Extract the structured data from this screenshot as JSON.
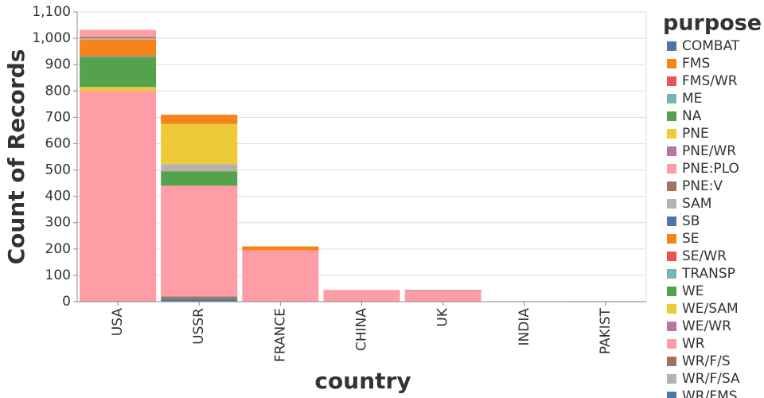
{
  "chart_data": {
    "type": "stacked_bar",
    "x_label": "country",
    "y_label": "Count of Records",
    "legend_title": "purpose",
    "categories": [
      "USA",
      "USSR",
      "FRANCE",
      "CHINA",
      "UK",
      "INDIA",
      "PAKIST"
    ],
    "ylim": [
      0,
      1100
    ],
    "yticks": [
      0,
      100,
      200,
      300,
      400,
      500,
      600,
      700,
      800,
      900,
      {
        "value": 1000,
        "label": "1,000"
      },
      {
        "value": 1100,
        "label": "1,100"
      }
    ],
    "grid": true,
    "series": [
      {
        "name": "COMBAT",
        "color": "#4c78a8",
        "values": [
          0,
          0,
          0,
          0,
          0,
          0,
          0
        ]
      },
      {
        "name": "FMS",
        "color": "#f58518",
        "values": [
          0,
          35,
          0,
          0,
          0,
          0,
          0
        ]
      },
      {
        "name": "FMS/WR",
        "color": "#e45756",
        "values": [
          0,
          0,
          0,
          0,
          0,
          0,
          0
        ]
      },
      {
        "name": "ME",
        "color": "#72b7b2",
        "values": [
          0,
          0,
          0,
          0,
          0,
          0,
          0
        ]
      },
      {
        "name": "NA",
        "color": "#54a24b",
        "values": [
          0,
          0,
          0,
          0,
          0,
          0,
          0
        ]
      },
      {
        "name": "PNE",
        "color": "#eeca3b",
        "values": [
          0,
          153,
          0,
          0,
          0,
          0,
          0
        ]
      },
      {
        "name": "PNE/WR",
        "color": "#b279a2",
        "values": [
          0,
          0,
          0,
          0,
          0,
          0,
          0
        ]
      },
      {
        "name": "PNE:PLO",
        "color": "#ff9da6",
        "values": [
          27,
          0,
          0,
          0,
          0,
          0,
          0
        ]
      },
      {
        "name": "PNE:V",
        "color": "#9d755d",
        "values": [
          5,
          0,
          0,
          0,
          0,
          0,
          0
        ]
      },
      {
        "name": "SAM",
        "color": "#bab0ac",
        "values": [
          5,
          27,
          0,
          0,
          0,
          0,
          0
        ]
      },
      {
        "name": "SB",
        "color": "#4c78a8",
        "values": [
          0,
          0,
          0,
          0,
          0,
          0,
          0
        ]
      },
      {
        "name": "SE",
        "color": "#f58518",
        "values": [
          60,
          0,
          15,
          0,
          0,
          0,
          0
        ]
      },
      {
        "name": "SE/WR",
        "color": "#e45756",
        "values": [
          3,
          0,
          0,
          0,
          0,
          0,
          0
        ]
      },
      {
        "name": "TRANSP",
        "color": "#72b7b2",
        "values": [
          2,
          0,
          0,
          0,
          0,
          0,
          0
        ]
      },
      {
        "name": "WE",
        "color": "#54a24b",
        "values": [
          115,
          55,
          0,
          0,
          2,
          0,
          0
        ]
      },
      {
        "name": "WE/SAM",
        "color": "#eeca3b",
        "values": [
          15,
          0,
          0,
          0,
          0,
          0,
          0
        ]
      },
      {
        "name": "WE/WR",
        "color": "#b279a2",
        "values": [
          0,
          0,
          0,
          0,
          0,
          0,
          0
        ]
      },
      {
        "name": "WR",
        "color": "#ff9da6",
        "values": [
          800,
          420,
          195,
          45,
          43,
          1,
          2
        ]
      },
      {
        "name": "WR/F/S",
        "color": "#9d755d",
        "values": [
          0,
          10,
          0,
          0,
          0,
          0,
          0
        ]
      },
      {
        "name": "WR/F/SA",
        "color": "#bab0ac",
        "values": [
          0,
          0,
          0,
          0,
          0,
          0,
          0
        ]
      },
      {
        "name": "WR/FMS",
        "color": "#4c78a8",
        "values": [
          0,
          10,
          0,
          0,
          0,
          0,
          0
        ]
      }
    ]
  }
}
